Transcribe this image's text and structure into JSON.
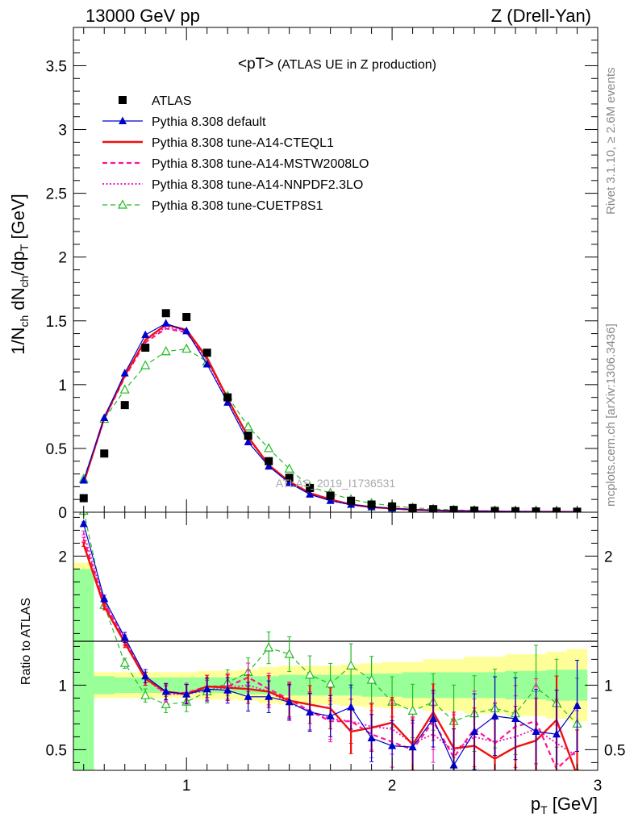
{
  "header": {
    "left": "13000 GeV pp",
    "right": "Z (Drell-Yan)"
  },
  "side_labels": {
    "rivet": "Rivet 3.1.10, ≥ 2.6M events",
    "mcplots": "mcplots.cern.ch [arXiv:1306.3436]"
  },
  "colors": {
    "data": "#000000",
    "default": "#0000cc",
    "cteql1": "#ee1111",
    "mstw": "#ff1493",
    "nnpdf": "#ee22cc",
    "cuetp8s1": "#22bb22",
    "band_inner": "#99ff99",
    "band_outer": "#ffff99"
  },
  "chart_data": [
    {
      "type": "line",
      "title": "<pT> (ATLAS UE in Z production)",
      "xlabel": "",
      "ylabel": "1/Nch dNch/dpT [GeV]",
      "xlim": [
        0.45,
        3.0
      ],
      "ylim": [
        0,
        3.8
      ],
      "yticks": [
        0,
        0.5,
        1,
        1.5,
        2,
        2.5,
        3,
        3.5
      ],
      "watermark": "ATLAS_2019_I1736531",
      "x": [
        0.5,
        0.6,
        0.7,
        0.8,
        0.9,
        1.0,
        1.1,
        1.2,
        1.3,
        1.4,
        1.5,
        1.6,
        1.7,
        1.8,
        1.9,
        2.0,
        2.1,
        2.2,
        2.3,
        2.4,
        2.5,
        2.6,
        2.7,
        2.8,
        2.9
      ],
      "series": [
        {
          "name": "ATLAS",
          "key": "data",
          "values": [
            0.11,
            0.46,
            0.84,
            1.29,
            1.56,
            1.53,
            1.25,
            0.9,
            0.6,
            0.4,
            0.27,
            0.19,
            0.13,
            0.09,
            0.06,
            0.045,
            0.033,
            0.024,
            0.018,
            0.013,
            0.01,
            0.008,
            0.006,
            0.005,
            0.004
          ]
        },
        {
          "name": "Pythia 8.308 default",
          "key": "default",
          "values": [
            0.25,
            0.74,
            1.09,
            1.39,
            1.48,
            1.42,
            1.16,
            0.86,
            0.55,
            0.36,
            0.23,
            0.14,
            0.09,
            0.06,
            0.04,
            0.03,
            0.02,
            0.015,
            0.01,
            0.008,
            0.006,
            0.005,
            0.004,
            0.003,
            0.003
          ]
        },
        {
          "name": "Pythia 8.308 tune-A14-CTEQL1",
          "key": "cteql1",
          "values": [
            0.23,
            0.74,
            1.07,
            1.35,
            1.47,
            1.43,
            1.21,
            0.89,
            0.59,
            0.37,
            0.24,
            0.15,
            0.1,
            0.06,
            0.04,
            0.03,
            0.02,
            0.014,
            0.01,
            0.008,
            0.006,
            0.004,
            0.003,
            0.003,
            0.002
          ]
        },
        {
          "name": "Pythia 8.308 tune-A14-MSTW2008LO",
          "key": "mstw",
          "values": [
            0.23,
            0.73,
            1.06,
            1.33,
            1.44,
            1.41,
            1.2,
            0.89,
            0.59,
            0.37,
            0.24,
            0.15,
            0.1,
            0.06,
            0.04,
            0.03,
            0.02,
            0.014,
            0.01,
            0.007,
            0.005,
            0.004,
            0.003,
            0.002,
            0.002
          ]
        },
        {
          "name": "Pythia 8.308 tune-A14-NNPDF2.3LO",
          "key": "nnpdf",
          "values": [
            0.24,
            0.73,
            1.07,
            1.35,
            1.45,
            1.42,
            1.19,
            0.88,
            0.58,
            0.37,
            0.23,
            0.15,
            0.09,
            0.06,
            0.04,
            0.03,
            0.02,
            0.014,
            0.01,
            0.007,
            0.005,
            0.004,
            0.003,
            0.002,
            0.002
          ]
        },
        {
          "name": "Pythia 8.308 tune-CUETP8S1",
          "key": "cuetp8s1",
          "values": [
            0.26,
            0.73,
            0.96,
            1.15,
            1.26,
            1.28,
            1.18,
            0.91,
            0.67,
            0.5,
            0.34,
            0.2,
            0.15,
            0.1,
            0.07,
            0.05,
            0.035,
            0.025,
            0.018,
            0.013,
            0.01,
            0.008,
            0.006,
            0.005,
            0.004
          ]
        }
      ]
    },
    {
      "type": "line",
      "title": "",
      "xlabel": "pT [GeV]",
      "ylabel": "Ratio to ATLAS",
      "xlim": [
        0.45,
        3.0
      ],
      "ylim": [
        0.34,
        2.34
      ],
      "ytick_labels": [
        0.5,
        1,
        2
      ],
      "xtick_labels": [
        1,
        2,
        3
      ],
      "x": [
        0.5,
        0.6,
        0.7,
        0.8,
        0.9,
        1.0,
        1.1,
        1.2,
        1.3,
        1.4,
        1.5,
        1.6,
        1.7,
        1.8,
        1.9,
        2.0,
        2.1,
        2.2,
        2.3,
        2.4,
        2.5,
        2.6,
        2.7,
        2.8,
        2.9
      ],
      "band_edges": [
        0.45,
        0.55,
        0.65,
        0.75,
        0.85,
        0.95,
        1.05,
        1.15,
        1.25,
        1.35,
        1.45,
        1.55,
        1.65,
        1.75,
        1.85,
        1.95,
        2.05,
        2.15,
        2.25,
        2.35,
        2.45,
        2.55,
        2.65,
        2.75,
        2.85,
        2.95
      ],
      "band_inner": [
        0.9,
        0.07,
        0.06,
        0.06,
        0.06,
        0.06,
        0.06,
        0.06,
        0.07,
        0.07,
        0.08,
        0.08,
        0.08,
        0.08,
        0.09,
        0.09,
        0.1,
        0.1,
        0.1,
        0.1,
        0.1,
        0.11,
        0.11,
        0.12,
        0.12
      ],
      "band_outer": [
        0.95,
        0.1,
        0.1,
        0.1,
        0.1,
        0.1,
        0.11,
        0.11,
        0.12,
        0.14,
        0.15,
        0.15,
        0.15,
        0.16,
        0.17,
        0.18,
        0.18,
        0.2,
        0.2,
        0.22,
        0.22,
        0.24,
        0.24,
        0.26,
        0.28
      ],
      "series": [
        {
          "name": "Pythia 8.308 default",
          "key": "default",
          "values": [
            2.25,
            1.67,
            1.37,
            1.07,
            0.95,
            0.93,
            0.97,
            0.96,
            0.91,
            0.91,
            0.87,
            0.79,
            0.76,
            0.83,
            0.59,
            0.53,
            0.52,
            0.74,
            0.38,
            0.64,
            0.76,
            0.74,
            0.64,
            0.62,
            0.84
          ]
        },
        {
          "name": "Pythia 8.308 tune-A14-CTEQL1",
          "key": "cteql1",
          "values": [
            2.09,
            1.61,
            1.33,
            1.05,
            0.95,
            0.93,
            0.99,
            0.98,
            0.97,
            0.95,
            0.88,
            0.85,
            0.82,
            0.64,
            0.67,
            0.71,
            0.54,
            0.79,
            0.51,
            0.53,
            0.43,
            0.52,
            0.57,
            0.73,
            0.3
          ]
        },
        {
          "name": "Pythia 8.308 tune-A14-MSTW2008LO",
          "key": "mstw",
          "values": [
            2.13,
            1.64,
            1.35,
            1.05,
            0.94,
            0.94,
            0.99,
            0.99,
            1.06,
            0.97,
            0.89,
            0.8,
            0.72,
            0.72,
            0.62,
            0.56,
            0.5,
            0.72,
            0.44,
            0.66,
            0.55,
            0.68,
            0.72,
            0.35,
            0.5
          ]
        },
        {
          "name": "Pythia 8.308 tune-A14-NNPDF2.3LO",
          "key": "nnpdf",
          "values": [
            2.18,
            1.64,
            1.35,
            1.05,
            0.93,
            0.93,
            0.96,
            0.98,
            1.0,
            0.95,
            0.86,
            0.8,
            0.74,
            0.72,
            0.68,
            0.66,
            0.55,
            0.62,
            0.49,
            0.6,
            0.56,
            0.6,
            0.66,
            0.55,
            0.45
          ]
        },
        {
          "name": "Pythia 8.308 tune-CUETP8S1",
          "key": "cuetp8s1",
          "values": [
            2.35,
            1.62,
            1.17,
            0.92,
            0.85,
            0.87,
            0.95,
            1.02,
            1.1,
            1.29,
            1.24,
            1.08,
            1.01,
            1.15,
            1.04,
            0.87,
            0.8,
            0.87,
            0.72,
            0.78,
            0.82,
            0.78,
            0.98,
            0.86,
            0.7
          ]
        }
      ]
    }
  ]
}
